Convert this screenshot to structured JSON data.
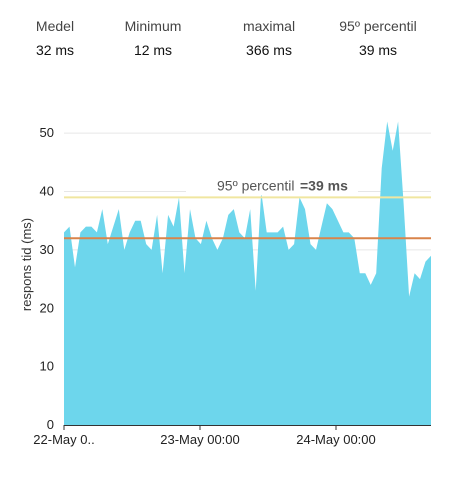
{
  "stats": [
    {
      "label": "Medel",
      "value": "32 ms"
    },
    {
      "label": "Minimum",
      "value": "12 ms"
    },
    {
      "label": "maximal",
      "value": "366 ms"
    },
    {
      "label": "95º percentil",
      "value": "39 ms"
    }
  ],
  "chart_data": {
    "type": "area",
    "ylabel": "respons tid (ms)",
    "ylim": [
      0,
      55
    ],
    "yticks": [
      0,
      10,
      20,
      30,
      40,
      50
    ],
    "xticks": [
      "22-May 0..",
      "23-May 00:00",
      "24-May 00:00"
    ],
    "grid": "horizontal",
    "colors": {
      "area": "#6dd6ec",
      "p95_line": "#f0e6a0",
      "mean_line": "#d9844a",
      "grid": "#e6e6e6"
    },
    "series": [
      {
        "values": [
          33,
          34,
          27,
          33,
          34,
          34,
          33,
          37,
          31,
          34,
          37,
          30,
          33,
          35,
          35,
          31,
          30,
          36,
          26,
          36,
          34,
          39,
          26,
          37,
          32,
          31,
          35,
          32,
          30,
          32,
          36,
          37,
          33,
          32,
          37,
          23,
          40,
          33,
          33,
          33,
          34,
          30,
          31,
          39,
          37,
          31,
          30,
          34,
          38,
          37,
          35,
          33,
          33,
          32,
          26,
          26,
          24,
          26,
          44,
          52,
          47,
          52,
          38,
          22,
          26,
          25,
          28,
          29
        ]
      }
    ],
    "reference_lines": [
      {
        "label": "95º percentil",
        "value_label": "=39 ms",
        "value": 39
      },
      {
        "value": 32
      }
    ]
  }
}
